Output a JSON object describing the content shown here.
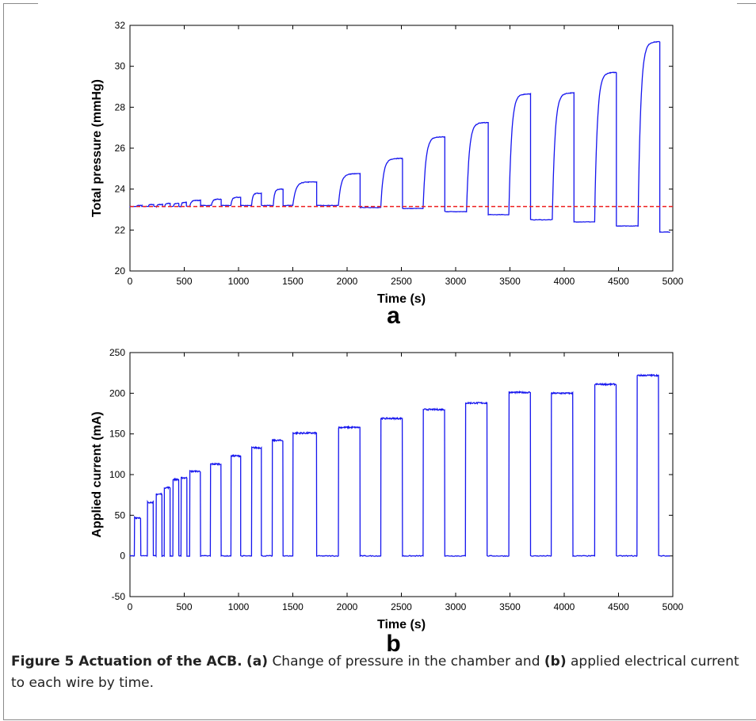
{
  "figure": {
    "caption_title": "Figure 5 Actuation of the ACB.",
    "caption_a_label": "(a)",
    "caption_a_text": "Change of pressure in the chamber and",
    "caption_b_label": "(b)",
    "caption_b_text": "applied electrical current to each wire by time."
  },
  "colors": {
    "series": "#1515ee",
    "reference": "#ee2020",
    "axis": "#000000"
  },
  "chart_data": [
    {
      "id": "a",
      "type": "line",
      "panel_label": "a",
      "xlabel": "Time (s)",
      "ylabel": "Total pressure (mmHg)",
      "xlim": [
        0,
        5000
      ],
      "ylim": [
        20,
        32
      ],
      "xticks": [
        0,
        500,
        1000,
        1500,
        2000,
        2500,
        3000,
        3500,
        4000,
        4500,
        5000
      ],
      "yticks": [
        20,
        22,
        24,
        26,
        28,
        30,
        32
      ],
      "reference_line": {
        "y": 23.15,
        "style": "dashed"
      },
      "pulses": [
        {
          "on": 60,
          "off": 110,
          "high": 23.2,
          "after": 23.15
        },
        {
          "on": 170,
          "off": 220,
          "high": 23.25,
          "after": 23.15
        },
        {
          "on": 245,
          "off": 300,
          "high": 23.25,
          "after": 23.15
        },
        {
          "on": 320,
          "off": 370,
          "high": 23.3,
          "after": 23.15
        },
        {
          "on": 400,
          "off": 450,
          "high": 23.3,
          "after": 23.15
        },
        {
          "on": 470,
          "off": 520,
          "high": 23.35,
          "after": 23.15
        },
        {
          "on": 550,
          "off": 650,
          "high": 23.45,
          "after": 23.2
        },
        {
          "on": 750,
          "off": 840,
          "high": 23.5,
          "after": 23.2
        },
        {
          "on": 930,
          "off": 1020,
          "high": 23.6,
          "after": 23.2
        },
        {
          "on": 1120,
          "off": 1210,
          "high": 23.8,
          "after": 23.2
        },
        {
          "on": 1320,
          "off": 1410,
          "high": 24.0,
          "after": 23.2
        },
        {
          "on": 1500,
          "off": 1720,
          "high": 24.35,
          "after": 23.2
        },
        {
          "on": 1920,
          "off": 2120,
          "high": 24.75,
          "after": 23.1
        },
        {
          "on": 2310,
          "off": 2510,
          "high": 25.5,
          "after": 23.05
        },
        {
          "on": 2700,
          "off": 2900,
          "high": 26.55,
          "after": 22.9
        },
        {
          "on": 3100,
          "off": 3300,
          "high": 27.25,
          "after": 22.75
        },
        {
          "on": 3490,
          "off": 3690,
          "high": 28.65,
          "after": 22.5
        },
        {
          "on": 3890,
          "off": 4090,
          "high": 28.7,
          "after": 22.4
        },
        {
          "on": 4280,
          "off": 4480,
          "high": 29.7,
          "after": 22.2
        },
        {
          "on": 4680,
          "off": 4880,
          "high": 31.2,
          "after": 21.9
        }
      ],
      "baseline_start": 23.15,
      "end_x": 4980
    },
    {
      "id": "b",
      "type": "line",
      "panel_label": "b",
      "xlabel": "Time (s)",
      "ylabel": "Applied current (mA)",
      "xlim": [
        0,
        5000
      ],
      "ylim": [
        -50,
        250
      ],
      "xticks": [
        0,
        500,
        1000,
        1500,
        2000,
        2500,
        3000,
        3500,
        4000,
        4500,
        5000
      ],
      "yticks": [
        -50,
        0,
        50,
        100,
        150,
        200,
        250
      ],
      "pulses": [
        {
          "on": 40,
          "off": 100,
          "high": 47
        },
        {
          "on": 160,
          "off": 215,
          "high": 66
        },
        {
          "on": 240,
          "off": 295,
          "high": 76
        },
        {
          "on": 315,
          "off": 370,
          "high": 84
        },
        {
          "on": 395,
          "off": 450,
          "high": 94
        },
        {
          "on": 470,
          "off": 525,
          "high": 96
        },
        {
          "on": 550,
          "off": 650,
          "high": 104
        },
        {
          "on": 740,
          "off": 840,
          "high": 113
        },
        {
          "on": 930,
          "off": 1020,
          "high": 123
        },
        {
          "on": 1120,
          "off": 1210,
          "high": 133
        },
        {
          "on": 1310,
          "off": 1410,
          "high": 142
        },
        {
          "on": 1500,
          "off": 1720,
          "high": 151
        },
        {
          "on": 1920,
          "off": 2120,
          "high": 158
        },
        {
          "on": 2310,
          "off": 2510,
          "high": 169
        },
        {
          "on": 2700,
          "off": 2900,
          "high": 180
        },
        {
          "on": 3090,
          "off": 3290,
          "high": 188
        },
        {
          "on": 3490,
          "off": 3690,
          "high": 201
        },
        {
          "on": 3880,
          "off": 4080,
          "high": 200
        },
        {
          "on": 4280,
          "off": 4480,
          "high": 211
        },
        {
          "on": 4670,
          "off": 4870,
          "high": 222
        }
      ],
      "baseline": 0,
      "end_x": 4980
    }
  ]
}
